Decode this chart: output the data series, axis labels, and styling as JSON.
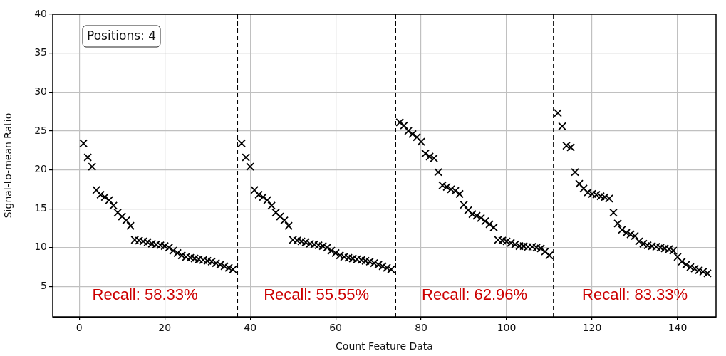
{
  "chart_data": {
    "type": "scatter",
    "xlabel": "Count Feature Data",
    "ylabel": "Signal-to-mean Ratio",
    "xlim": [
      -6.2,
      149
    ],
    "ylim": [
      1.1,
      40
    ],
    "xticks": [
      0,
      20,
      40,
      60,
      80,
      100,
      120,
      140
    ],
    "yticks": [
      5,
      10,
      15,
      20,
      25,
      30,
      35,
      40
    ],
    "grid": true,
    "marker": "cross",
    "series": [
      {
        "color": "#000000",
        "x": [
          1,
          2,
          3,
          4,
          5,
          6,
          7,
          8,
          9,
          10,
          11,
          12,
          13,
          14,
          15,
          16,
          17,
          18,
          19,
          20,
          21,
          22,
          23,
          24,
          25,
          26,
          27,
          28,
          29,
          30,
          31,
          32,
          33,
          34,
          35,
          36,
          38,
          39,
          40,
          41,
          42,
          43,
          44,
          45,
          46,
          47,
          48,
          49,
          50,
          51,
          52,
          53,
          54,
          55,
          56,
          57,
          58,
          59,
          60,
          61,
          62,
          63,
          64,
          65,
          66,
          67,
          68,
          69,
          70,
          71,
          72,
          73,
          75,
          76,
          77,
          78,
          79,
          80,
          81,
          82,
          83,
          84,
          85,
          86,
          87,
          88,
          89,
          90,
          91,
          92,
          93,
          94,
          95,
          96,
          97,
          98,
          99,
          100,
          101,
          102,
          103,
          104,
          105,
          106,
          107,
          108,
          109,
          110,
          112,
          113,
          114,
          115,
          116,
          117,
          118,
          119,
          120,
          121,
          122,
          123,
          124,
          125,
          126,
          127,
          128,
          129,
          130,
          131,
          132,
          133,
          134,
          135,
          136,
          137,
          138,
          139,
          140,
          141,
          142,
          143,
          144,
          145,
          146,
          147
        ],
        "values": [
          23.4,
          21.6,
          20.4,
          17.4,
          16.8,
          16.5,
          16.1,
          15.4,
          14.5,
          14.0,
          13.5,
          12.8,
          11.0,
          10.9,
          10.8,
          10.7,
          10.5,
          10.4,
          10.3,
          10.2,
          10.0,
          9.6,
          9.3,
          9.0,
          8.8,
          8.7,
          8.6,
          8.5,
          8.4,
          8.3,
          8.2,
          8.0,
          7.8,
          7.6,
          7.4,
          7.2,
          23.4,
          21.6,
          20.4,
          17.4,
          16.8,
          16.5,
          16.1,
          15.4,
          14.5,
          14.0,
          13.5,
          12.8,
          11.0,
          10.9,
          10.8,
          10.7,
          10.5,
          10.4,
          10.3,
          10.2,
          10.0,
          9.6,
          9.3,
          9.0,
          8.8,
          8.7,
          8.6,
          8.5,
          8.4,
          8.3,
          8.2,
          8.0,
          7.8,
          7.6,
          7.4,
          7.2,
          26.1,
          25.7,
          25.0,
          24.6,
          24.2,
          23.6,
          22.1,
          21.7,
          21.5,
          19.7,
          18.0,
          17.8,
          17.5,
          17.3,
          16.9,
          15.5,
          14.8,
          14.3,
          14.1,
          13.8,
          13.4,
          13.0,
          12.6,
          11.0,
          10.9,
          10.8,
          10.6,
          10.4,
          10.2,
          10.2,
          10.1,
          10.1,
          10.0,
          9.9,
          9.5,
          9.0,
          27.3,
          25.6,
          23.1,
          22.9,
          19.7,
          18.2,
          17.6,
          17.1,
          16.9,
          16.8,
          16.6,
          16.5,
          16.3,
          14.5,
          13.1,
          12.3,
          11.9,
          11.7,
          11.5,
          10.8,
          10.5,
          10.3,
          10.2,
          10.1,
          10.0,
          9.9,
          9.8,
          9.6,
          8.8,
          8.2,
          7.8,
          7.5,
          7.3,
          7.1,
          6.9,
          6.7
        ]
      }
    ],
    "ref_lines": [
      {
        "axis": "x",
        "value": 37,
        "color": "#000000",
        "line_style": "dashed"
      },
      {
        "axis": "x",
        "value": 74,
        "color": "#000000",
        "line_style": "dashed"
      },
      {
        "axis": "x",
        "value": 111,
        "color": "#000000",
        "line_style": "dashed"
      }
    ],
    "annotations": [
      "Positions: 4",
      "Recall: 58.33%",
      "Recall: 55.55%",
      "Recall: 62.96%",
      "Recall: 83.33%"
    ]
  }
}
